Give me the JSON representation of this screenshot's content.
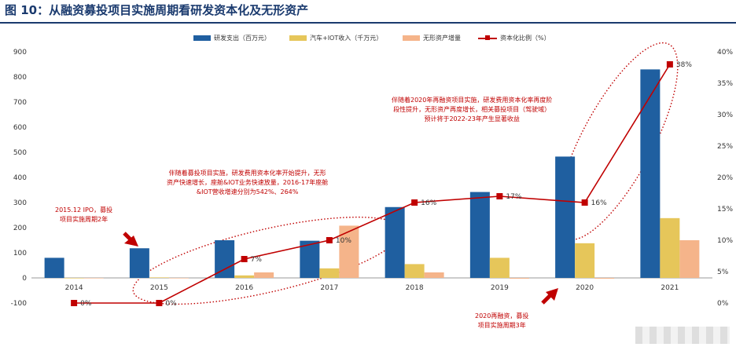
{
  "title": "图 10：从融资募投项目实施周期看研发资本化及无形资产",
  "legend": {
    "rd": "研发支出（百万元）",
    "iot": "汽车+IOT收入（千万元）",
    "intangible": "无形资产增量",
    "ratio": "资本化比例（%）"
  },
  "annotations": {
    "ipo": [
      "2015.12 IPO，募投",
      "项目实施周期2年"
    ],
    "mid": [
      "伴随着募投项目实施，研发费用资本化率开始提升，无形",
      "资产快速增长，座舱&IOT业务快速放量，2016-17年座舱",
      "&IOT营收增速分别为542%、264%"
    ],
    "right": [
      "伴随着2020年再融资项目实施，研发费用资本化率再度阶",
      "段性提升，无形资产再度增长，相关募投项目（驾驶域）",
      "预计将于2022-23年产生显著收益"
    ],
    "bottom": [
      "2020再融资，募投",
      "项目实施周期3年"
    ]
  },
  "colors": {
    "rd": "#1f5fa0",
    "iot": "#e6c65a",
    "intangible": "#f5b48a",
    "ratio": "#c00000",
    "title": "#1a3a6e"
  },
  "chart_data": {
    "type": "bar",
    "categories": [
      "2014",
      "2015",
      "2016",
      "2017",
      "2018",
      "2019",
      "2020",
      "2021"
    ],
    "series": [
      {
        "name": "研发支出（百万元）",
        "type": "bar",
        "axis": "left",
        "values": [
          80,
          118,
          150,
          148,
          282,
          342,
          483,
          830
        ]
      },
      {
        "name": "汽车+IOT收入（千万元）",
        "type": "bar",
        "axis": "left",
        "values": [
          0,
          2,
          10,
          38,
          55,
          80,
          138,
          238
        ]
      },
      {
        "name": "无形资产增量",
        "type": "bar",
        "axis": "left",
        "values": [
          0,
          0,
          22,
          208,
          22,
          -3,
          -3,
          150
        ]
      },
      {
        "name": "资本化比例（%）",
        "type": "line",
        "axis": "right",
        "values": [
          0,
          0,
          7,
          10,
          16,
          17,
          16,
          38
        ]
      }
    ],
    "point_labels": [
      "0%",
      "0%",
      "7%",
      "10%",
      "16%",
      "17%",
      "16%",
      "38%"
    ],
    "ylim_left": [
      -100,
      900
    ],
    "ylim_right": [
      0,
      40
    ],
    "yticks_left": [
      "-100",
      "0",
      "100",
      "200",
      "300",
      "400",
      "500",
      "600",
      "700",
      "800",
      "900"
    ],
    "yticks_right": [
      "0%",
      "5%",
      "10%",
      "15%",
      "20%",
      "25%",
      "30%",
      "35%",
      "40%"
    ],
    "legend_position": "top",
    "grid": false
  }
}
